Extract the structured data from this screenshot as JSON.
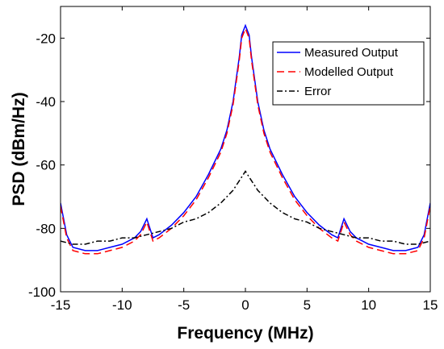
{
  "chart_data": {
    "type": "line",
    "title": "",
    "xlabel": "Frequency (MHz)",
    "ylabel": "PSD (dBm/Hz)",
    "xlim": [
      -15,
      15
    ],
    "ylim": [
      -100,
      -10
    ],
    "xticks": [
      -15,
      -10,
      -5,
      0,
      5,
      10,
      15
    ],
    "yticks": [
      -100,
      -80,
      -60,
      -40,
      -20
    ],
    "grid": false,
    "legend_position": "top-right",
    "series": [
      {
        "name": "Measured Output",
        "color": "#0000ff",
        "style": "solid",
        "x": [
          -15,
          -14.5,
          -14,
          -13,
          -12,
          -11,
          -10,
          -9,
          -8.5,
          -8,
          -7.5,
          -7,
          -6,
          -5,
          -4,
          -3,
          -2,
          -1.5,
          -1,
          -0.5,
          -0.3,
          0,
          0.3,
          0.5,
          1,
          1.5,
          2,
          3,
          4,
          5,
          6,
          7,
          7.5,
          8,
          8.5,
          9,
          10,
          11,
          12,
          13,
          14,
          14.5,
          15
        ],
        "y": [
          -72,
          -82,
          -86,
          -87,
          -87,
          -86,
          -85,
          -83,
          -81,
          -77,
          -83,
          -82,
          -79,
          -75,
          -70,
          -63,
          -55,
          -49,
          -40,
          -26,
          -19,
          -16,
          -19,
          -26,
          -40,
          -49,
          -55,
          -63,
          -70,
          -75,
          -79,
          -82,
          -83,
          -77,
          -81,
          -83,
          -85,
          -86,
          -87,
          -87,
          -86,
          -82,
          -72
        ]
      },
      {
        "name": "Modelled Output",
        "color": "#ff0000",
        "style": "dashed",
        "x": [
          -15,
          -14.5,
          -14,
          -13,
          -12,
          -11,
          -10,
          -9,
          -8.5,
          -8,
          -7.5,
          -7,
          -6,
          -5,
          -4,
          -3,
          -2,
          -1.5,
          -1,
          -0.5,
          -0.3,
          0,
          0.3,
          0.5,
          1,
          1.5,
          2,
          3,
          4,
          5,
          6,
          7,
          7.5,
          8,
          8.5,
          9,
          10,
          11,
          12,
          13,
          14,
          14.5,
          15
        ],
        "y": [
          -73,
          -83,
          -87,
          -88,
          -88,
          -87,
          -86,
          -84,
          -82,
          -78,
          -84,
          -83,
          -80,
          -76,
          -71,
          -64,
          -56,
          -50,
          -41,
          -27,
          -20,
          -17,
          -20,
          -27,
          -41,
          -50,
          -56,
          -64,
          -71,
          -76,
          -80,
          -83,
          -84,
          -78,
          -82,
          -84,
          -86,
          -87,
          -88,
          -88,
          -87,
          -83,
          -73
        ]
      },
      {
        "name": "Error",
        "color": "#000000",
        "style": "dashdot",
        "x": [
          -15,
          -14,
          -13,
          -12,
          -11,
          -10,
          -9,
          -8,
          -7,
          -6,
          -5,
          -4,
          -3,
          -2,
          -1.5,
          -1,
          -0.5,
          0,
          0.5,
          1,
          1.5,
          2,
          3,
          4,
          5,
          6,
          7,
          8,
          9,
          10,
          11,
          12,
          13,
          14,
          15
        ],
        "y": [
          -84,
          -85,
          -85,
          -84,
          -84,
          -83,
          -83,
          -82,
          -81,
          -80,
          -78,
          -77,
          -75,
          -72,
          -70,
          -68,
          -65,
          -62,
          -65,
          -68,
          -70,
          -72,
          -75,
          -77,
          -78,
          -80,
          -81,
          -82,
          -83,
          -83,
          -84,
          -84,
          -85,
          -85,
          -84
        ]
      }
    ]
  }
}
